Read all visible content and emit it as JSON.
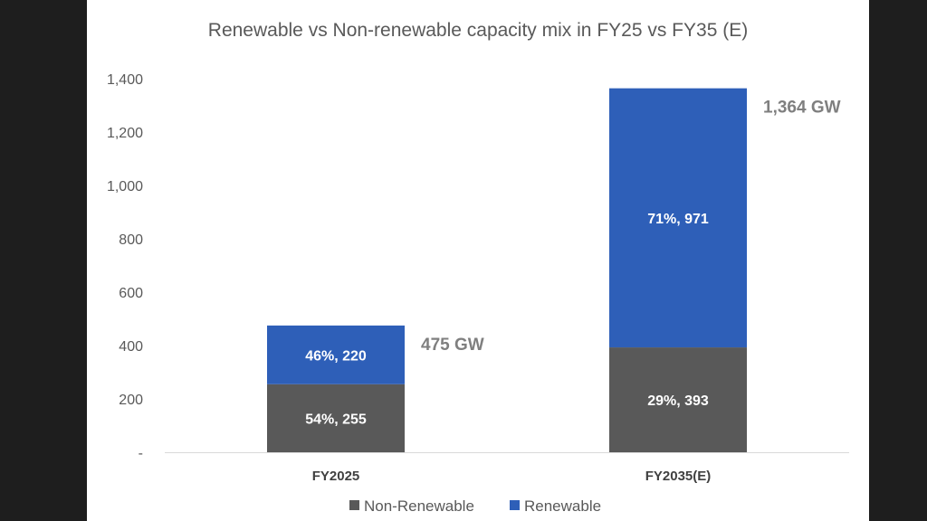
{
  "chart_data": {
    "type": "bar",
    "stacked": true,
    "title": "Renewable vs Non-renewable capacity mix in FY25 vs FY35 (E)",
    "categories": [
      "FY2025",
      "FY2035(E)"
    ],
    "series": [
      {
        "name": "Non-Renewable",
        "color": "#595959",
        "values": [
          255,
          393
        ],
        "labels": [
          "54%,  255",
          "29%,  393"
        ]
      },
      {
        "name": "Renewable",
        "color": "#2e5fb8",
        "values": [
          220,
          971
        ],
        "labels": [
          "46%,  220",
          "71%,  971"
        ]
      }
    ],
    "totals": [
      "475 GW",
      "1,364 GW"
    ],
    "ylim": [
      0,
      1400
    ],
    "yticks": [
      0,
      200,
      400,
      600,
      800,
      1000,
      1200,
      1400
    ],
    "ytick_labels": [
      "-",
      "200",
      "400",
      "600",
      "800",
      "1,000",
      "1,200",
      "1,400"
    ],
    "legend_position": "bottom",
    "grid": false
  }
}
